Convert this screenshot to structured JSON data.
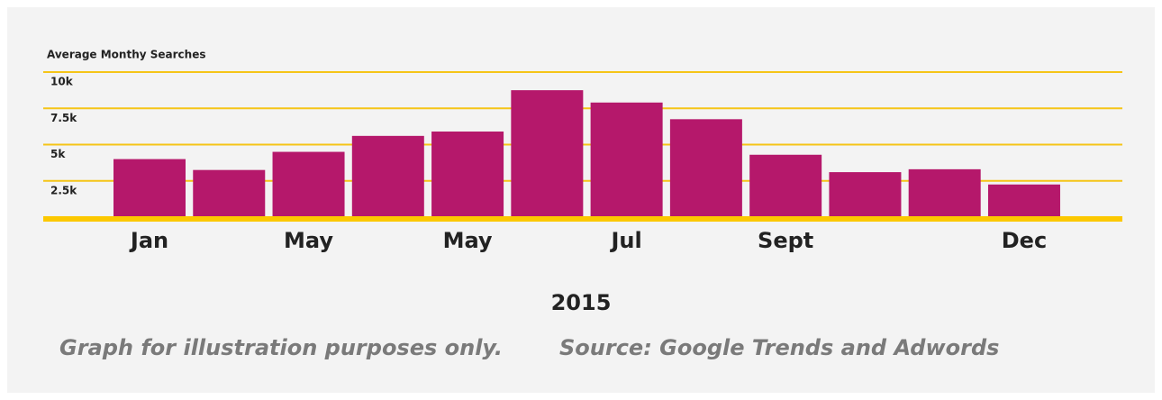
{
  "chart_data": {
    "type": "bar",
    "y_label": "Average Monthy Searches",
    "x_label": "2015",
    "categories": [
      "Jan",
      null,
      "May",
      null,
      "May",
      null,
      "Jul",
      null,
      "Sept",
      null,
      null,
      "Dec"
    ],
    "values": [
      4000,
      3250,
      4500,
      5600,
      5900,
      8750,
      7900,
      6750,
      4300,
      3100,
      3300,
      2250
    ],
    "color": "#b5186b",
    "grid_color": "#f5c518",
    "ylim": [
      0,
      10000
    ],
    "yticks": [
      {
        "value": 2500,
        "label": "2.5k"
      },
      {
        "value": 5000,
        "label": "5k"
      },
      {
        "value": 7500,
        "label": "7.5k"
      },
      {
        "value": 10000,
        "label": "10k"
      }
    ],
    "grid": true,
    "notes": [
      "Graph for illustration purposes only.",
      "Source: Google Trends and Adwords"
    ]
  }
}
